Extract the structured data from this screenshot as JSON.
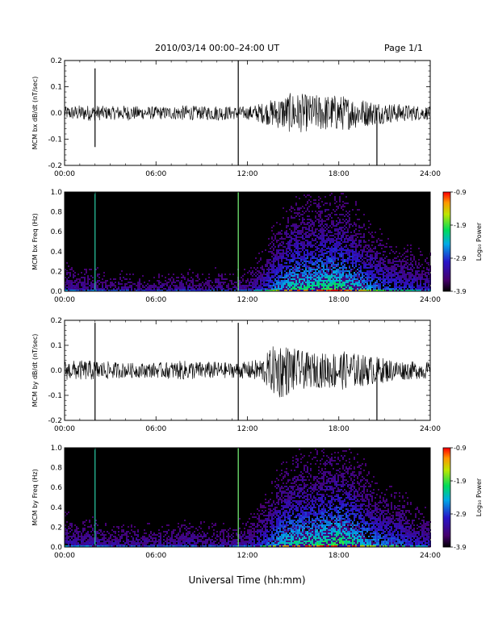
{
  "header": {
    "title": "2010/03/14  00:00–24:00 UT",
    "page": "Page 1/1"
  },
  "x_axis_title": "Universal Time (hh:mm)",
  "colors": {
    "trace": "#000000",
    "background": "#ffffff",
    "spectrogram_bg": "#000000"
  },
  "chart_data": [
    {
      "type": "line",
      "ylabel": "MCM bx dB/dt (nT/sec)",
      "xlim": [
        0,
        24
      ],
      "ylim": [
        -0.2,
        0.2
      ],
      "x_ticks": [
        "00:00",
        "06:00",
        "12:00",
        "18:00",
        "24:00"
      ],
      "y_ticks": [
        "-0.2",
        "-0.1",
        "0.0",
        "0.1",
        "0.2"
      ],
      "envelope": {
        "x": [
          0,
          1,
          2,
          3,
          4,
          5,
          6,
          7,
          8,
          9,
          10,
          11,
          12,
          13,
          14,
          15,
          16,
          17,
          18,
          19,
          20,
          21,
          22,
          23,
          24
        ],
        "amp": [
          0.025,
          0.03,
          0.03,
          0.025,
          0.03,
          0.025,
          0.025,
          0.025,
          0.03,
          0.025,
          0.03,
          0.025,
          0.025,
          0.04,
          0.06,
          0.08,
          0.07,
          0.07,
          0.07,
          0.06,
          0.05,
          0.04,
          0.035,
          0.03,
          0.025
        ]
      },
      "spikes": [
        {
          "x": 2.0,
          "y_max": 0.17,
          "y_min": -0.13
        },
        {
          "x": 11.4,
          "y_max": 0.2,
          "y_min": -0.2
        },
        {
          "x": 20.5,
          "y_max": 0.02,
          "y_min": -0.2
        }
      ]
    },
    {
      "type": "heatmap",
      "ylabel": "MCM bx Freq (Hz)",
      "xlim": [
        0,
        24
      ],
      "ylim": [
        0,
        1
      ],
      "x_ticks": [
        "00:00",
        "06:00",
        "12:00",
        "18:00",
        "24:00"
      ],
      "y_ticks": [
        "0.0",
        "0.2",
        "0.4",
        "0.6",
        "0.8",
        "1.0"
      ],
      "colorbar": {
        "label": "Log₁₀ Power",
        "range": [
          -3.9,
          -0.9
        ],
        "ticks": [
          "-0.9",
          "-1.9",
          "-2.9",
          "-3.9"
        ]
      },
      "activity": {
        "x": [
          0,
          1,
          2,
          3,
          4,
          5,
          6,
          7,
          8,
          9,
          10,
          11,
          12,
          13,
          14,
          15,
          16,
          17,
          18,
          19,
          20,
          21,
          22,
          23,
          24
        ],
        "level": [
          0.35,
          0.3,
          0.3,
          0.25,
          0.3,
          0.25,
          0.25,
          0.25,
          0.3,
          0.25,
          0.3,
          0.25,
          0.3,
          0.45,
          0.7,
          0.85,
          0.85,
          0.9,
          0.9,
          0.8,
          0.65,
          0.55,
          0.5,
          0.45,
          0.4
        ]
      },
      "spike_lines": [
        2.0,
        11.4
      ]
    },
    {
      "type": "line",
      "ylabel": "MCM by dB/dt (nT/sec)",
      "xlim": [
        0,
        24
      ],
      "ylim": [
        -0.2,
        0.2
      ],
      "x_ticks": [
        "00:00",
        "06:00",
        "12:00",
        "18:00",
        "24:00"
      ],
      "y_ticks": [
        "-0.2",
        "-0.1",
        "0.0",
        "0.1",
        "0.2"
      ],
      "envelope": {
        "x": [
          0,
          1,
          2,
          3,
          4,
          5,
          6,
          7,
          8,
          9,
          10,
          11,
          12,
          13,
          14,
          15,
          16,
          17,
          18,
          19,
          20,
          21,
          22,
          23,
          24
        ],
        "amp": [
          0.04,
          0.04,
          0.04,
          0.035,
          0.03,
          0.03,
          0.03,
          0.035,
          0.04,
          0.035,
          0.035,
          0.03,
          0.035,
          0.05,
          0.12,
          0.09,
          0.07,
          0.07,
          0.08,
          0.07,
          0.06,
          0.05,
          0.04,
          0.035,
          0.035
        ]
      },
      "spikes": [
        {
          "x": 2.0,
          "y_max": 0.19,
          "y_min": -0.2
        },
        {
          "x": 11.4,
          "y_max": 0.19,
          "y_min": -0.2
        },
        {
          "x": 20.5,
          "y_max": 0.03,
          "y_min": -0.2
        }
      ]
    },
    {
      "type": "heatmap",
      "ylabel": "MCM by Freq (Hz)",
      "xlim": [
        0,
        24
      ],
      "ylim": [
        0,
        1
      ],
      "x_ticks": [
        "00:00",
        "06:00",
        "12:00",
        "18:00",
        "24:00"
      ],
      "y_ticks": [
        "0.0",
        "0.2",
        "0.4",
        "0.6",
        "0.8",
        "1.0"
      ],
      "colorbar": {
        "label": "Log₁₀ Power",
        "range": [
          -3.9,
          -0.9
        ],
        "ticks": [
          "-0.9",
          "-1.9",
          "-2.9",
          "-3.9"
        ]
      },
      "activity": {
        "x": [
          0,
          1,
          2,
          3,
          4,
          5,
          6,
          7,
          8,
          9,
          10,
          11,
          12,
          13,
          14,
          15,
          16,
          17,
          18,
          19,
          20,
          21,
          22,
          23,
          24
        ],
        "level": [
          0.4,
          0.35,
          0.35,
          0.3,
          0.3,
          0.3,
          0.3,
          0.3,
          0.35,
          0.3,
          0.3,
          0.3,
          0.35,
          0.5,
          0.75,
          0.85,
          0.85,
          0.9,
          0.95,
          0.85,
          0.7,
          0.6,
          0.55,
          0.45,
          0.4
        ]
      },
      "spike_lines": [
        2.0,
        11.4
      ]
    }
  ]
}
